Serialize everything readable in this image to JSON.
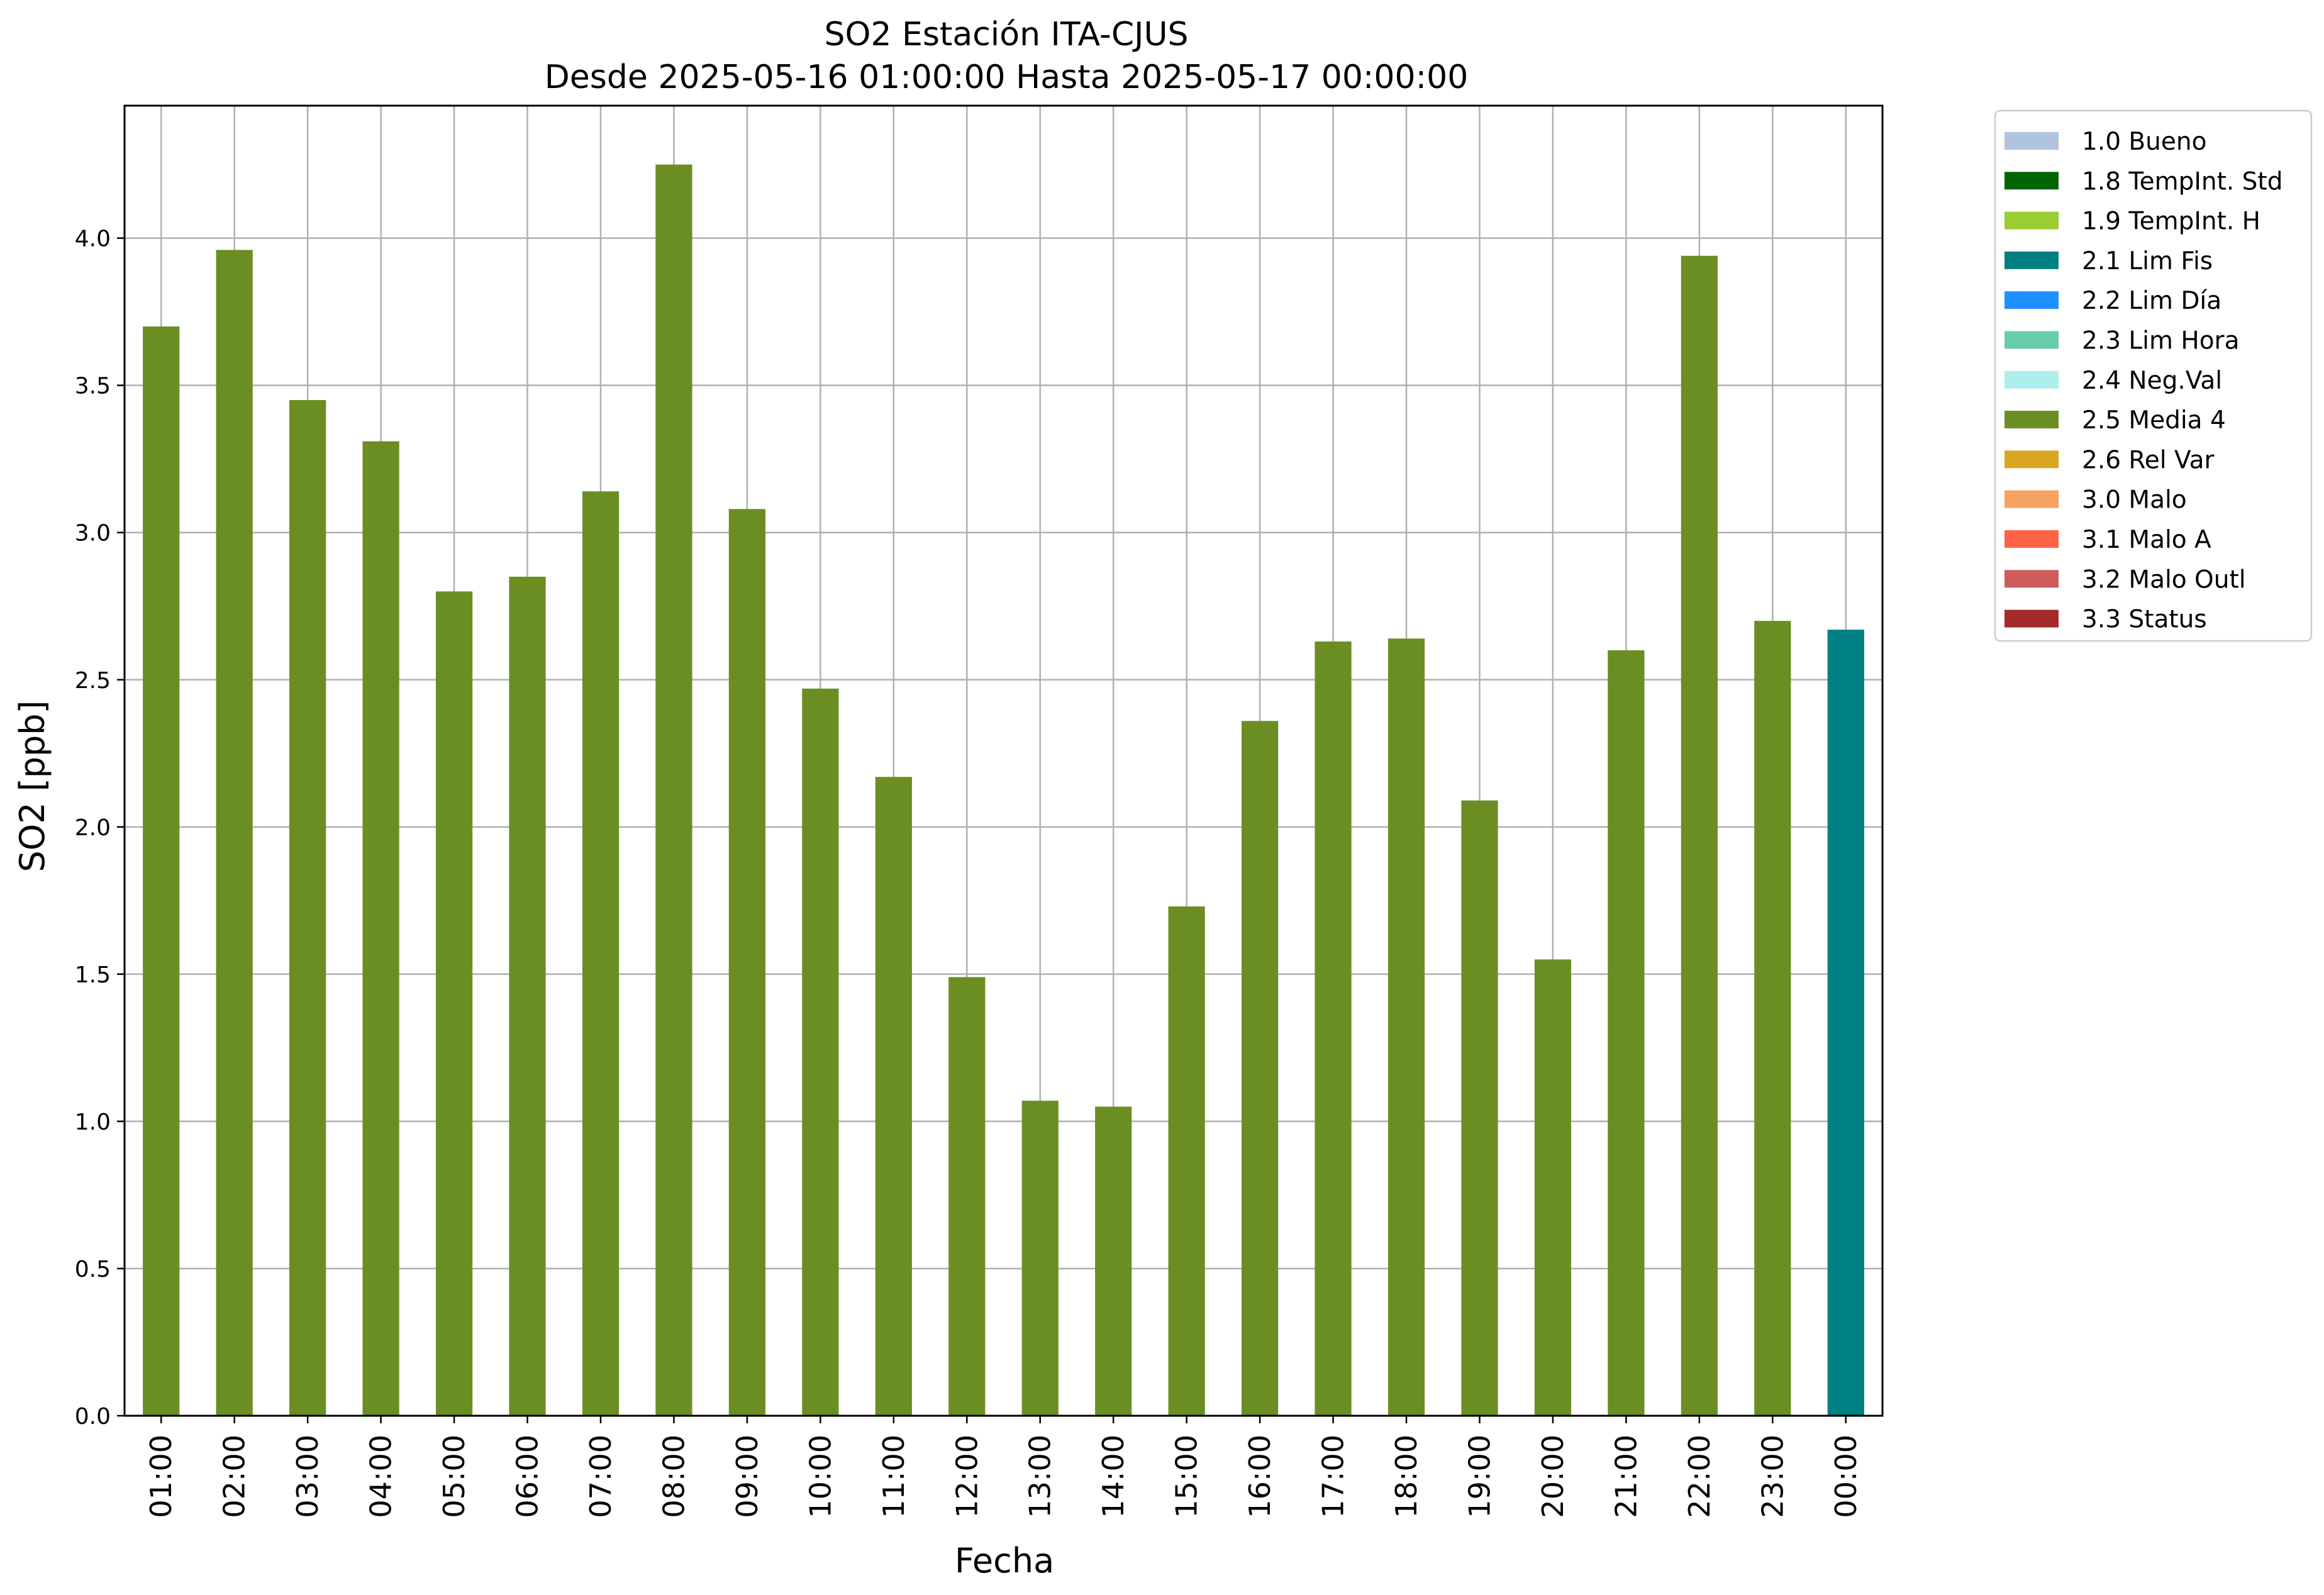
{
  "chart_data": {
    "type": "bar",
    "title": "SO2 Estación ITA-CJUS",
    "subtitle": "Desde 2025-05-16 01:00:00 Hasta 2025-05-17 00:00:00",
    "xlabel": "Fecha",
    "ylabel": "SO2 [ppb]",
    "ylim": [
      0,
      4.45
    ],
    "yticks": [
      0.0,
      0.5,
      1.0,
      1.5,
      2.0,
      2.5,
      3.0,
      3.5,
      4.0
    ],
    "ytick_labels": [
      "0.0",
      "0.5",
      "1.0",
      "1.5",
      "2.0",
      "2.5",
      "3.0",
      "3.5",
      "4.0"
    ],
    "grid": true,
    "legend_position": "outside-top-right",
    "categories": [
      "01:00",
      "02:00",
      "03:00",
      "04:00",
      "05:00",
      "06:00",
      "07:00",
      "08:00",
      "09:00",
      "10:00",
      "11:00",
      "12:00",
      "13:00",
      "14:00",
      "15:00",
      "16:00",
      "17:00",
      "18:00",
      "19:00",
      "20:00",
      "21:00",
      "22:00",
      "23:00",
      "00:00"
    ],
    "values": [
      3.7,
      3.96,
      3.45,
      3.31,
      2.8,
      2.85,
      3.14,
      4.25,
      3.08,
      2.47,
      2.17,
      1.49,
      1.07,
      1.05,
      1.73,
      2.36,
      2.63,
      2.64,
      2.09,
      1.55,
      2.6,
      3.94,
      2.7,
      2.67
    ],
    "flags": [
      "2.5 Media 4",
      "2.5 Media 4",
      "2.5 Media 4",
      "2.5 Media 4",
      "2.5 Media 4",
      "2.5 Media 4",
      "2.5 Media 4",
      "2.5 Media 4",
      "2.5 Media 4",
      "2.5 Media 4",
      "2.5 Media 4",
      "2.5 Media 4",
      "2.5 Media 4",
      "2.5 Media 4",
      "2.5 Media 4",
      "2.5 Media 4",
      "2.5 Media 4",
      "2.5 Media 4",
      "2.5 Media 4",
      "2.5 Media 4",
      "2.5 Media 4",
      "2.5 Media 4",
      "2.5 Media 4",
      "2.1 Lim Fis"
    ],
    "legend": [
      {
        "label": "1.0 Bueno",
        "color": "#b0c4de"
      },
      {
        "label": "1.8 TempInt. Std",
        "color": "#006400"
      },
      {
        "label": "1.9 TempInt. H",
        "color": "#9acd32"
      },
      {
        "label": "2.1 Lim Fis",
        "color": "#008080"
      },
      {
        "label": "2.2 Lim Día",
        "color": "#1e90ff"
      },
      {
        "label": "2.3 Lim Hora",
        "color": "#66cdaa"
      },
      {
        "label": "2.4 Neg.Val",
        "color": "#afeeee"
      },
      {
        "label": "2.5 Media 4",
        "color": "#6b8e23"
      },
      {
        "label": "2.6 Rel Var",
        "color": "#daa520"
      },
      {
        "label": "3.0 Malo",
        "color": "#f4a460"
      },
      {
        "label": "3.1 Malo A",
        "color": "#ff6347"
      },
      {
        "label": "3.2 Malo Outl",
        "color": "#cd5c5c"
      },
      {
        "label": "3.3 Status",
        "color": "#a52a2a"
      }
    ]
  }
}
